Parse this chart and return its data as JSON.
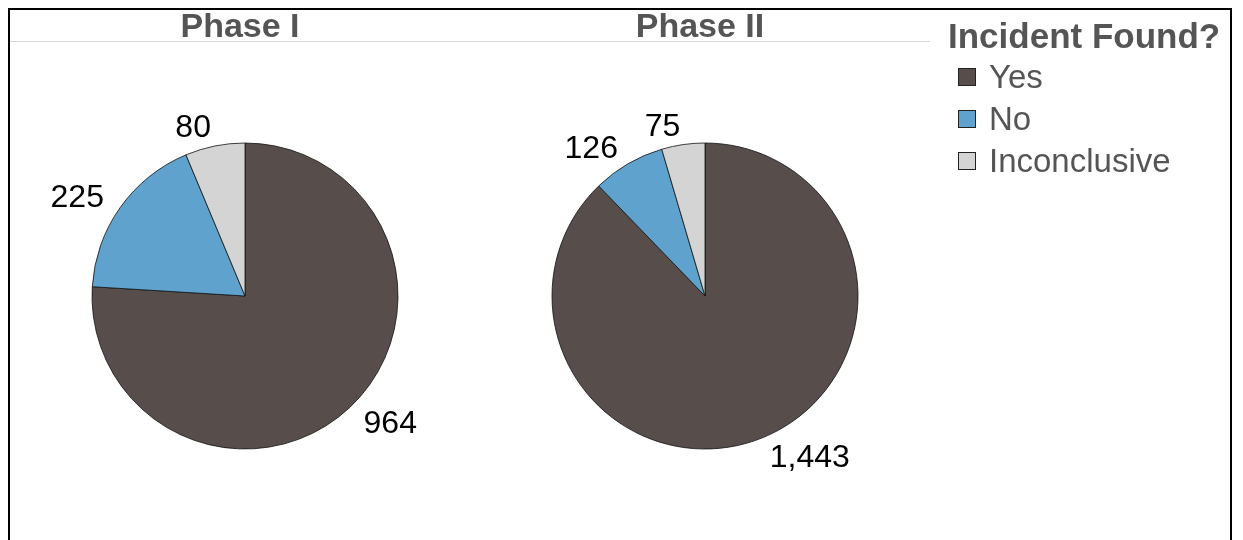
{
  "chart_data": [
    {
      "type": "pie",
      "title": "Phase I",
      "categories": [
        null,
        null,
        null
      ],
      "values": [
        964,
        225,
        80
      ],
      "value_labels": [
        "964",
        "225",
        "80"
      ],
      "colors": [
        "#574e4c",
        "#5fa2ce",
        "#d4d4d4"
      ]
    },
    {
      "type": "pie",
      "title": "Phase II",
      "categories": [
        "Yes",
        "No",
        "Inconclusive"
      ],
      "values": [
        1443,
        126,
        75
      ],
      "value_labels": [
        "1,443",
        "126",
        "75"
      ],
      "colors": [
        "#574e4c",
        "#5fa2ce",
        "#d4d4d4"
      ],
      "legend": "right",
      "legend_title": "Incident Found?"
    }
  ]
}
